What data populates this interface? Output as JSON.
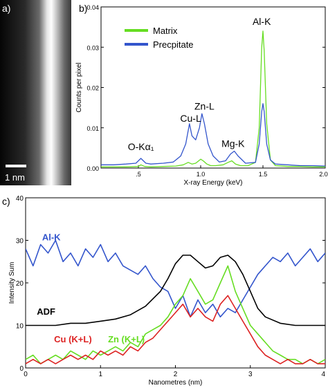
{
  "panels": {
    "a": {
      "label": "a)",
      "scale_bar_label": "1 nm"
    },
    "b": {
      "label": "b)"
    },
    "c": {
      "label": "c)"
    }
  },
  "chart_data": [
    {
      "panel": "b",
      "type": "line",
      "xlabel": "X-ray Energy (keV)",
      "ylabel": "Counts per pixel",
      "xlim": [
        0.2,
        2.0
      ],
      "ylim": [
        0,
        0.04
      ],
      "xticks": [
        {
          "value": 0.5,
          "label": ".5"
        },
        {
          "value": 1.0,
          "label": "1.0"
        },
        {
          "value": 1.5,
          "label": "1.5"
        },
        {
          "value": 2.0,
          "label": "2.00"
        }
      ],
      "yticks": [
        {
          "value": 0,
          "label": "0.00"
        },
        {
          "value": 0.01,
          "label": "0.01"
        },
        {
          "value": 0.02,
          "label": "0.02"
        },
        {
          "value": 0.03,
          "label": "0.03"
        },
        {
          "value": 0.04,
          "label": "0.04"
        }
      ],
      "legend_position": "top-left",
      "series": [
        {
          "name": "Matrix",
          "color": "#66dd22",
          "x": [
            0.2,
            0.3,
            0.4,
            0.5,
            0.52,
            0.55,
            0.6,
            0.7,
            0.8,
            0.86,
            0.9,
            0.93,
            0.96,
            1.0,
            1.02,
            1.05,
            1.08,
            1.12,
            1.18,
            1.22,
            1.25,
            1.28,
            1.32,
            1.38,
            1.44,
            1.47,
            1.49,
            1.5,
            1.51,
            1.53,
            1.56,
            1.6,
            1.7,
            1.8,
            1.9,
            2.0
          ],
          "y": [
            0.0003,
            0.0003,
            0.0003,
            0.0004,
            0.0008,
            0.0004,
            0.0003,
            0.0004,
            0.0005,
            0.0008,
            0.0014,
            0.001,
            0.0012,
            0.0022,
            0.0018,
            0.001,
            0.0006,
            0.0006,
            0.0008,
            0.0014,
            0.0018,
            0.001,
            0.0006,
            0.0006,
            0.0014,
            0.01,
            0.03,
            0.034,
            0.029,
            0.011,
            0.002,
            0.0006,
            0.0004,
            0.0004,
            0.0003,
            0.0003
          ]
        },
        {
          "name": "Precpitate",
          "color": "#3355cc",
          "x": [
            0.2,
            0.3,
            0.4,
            0.48,
            0.52,
            0.56,
            0.6,
            0.7,
            0.78,
            0.84,
            0.88,
            0.91,
            0.93,
            0.96,
            0.99,
            1.01,
            1.03,
            1.06,
            1.1,
            1.15,
            1.2,
            1.24,
            1.27,
            1.3,
            1.36,
            1.44,
            1.47,
            1.49,
            1.5,
            1.51,
            1.53,
            1.56,
            1.6,
            1.7,
            1.8,
            1.9,
            2.0
          ],
          "y": [
            0.0008,
            0.0008,
            0.001,
            0.0012,
            0.0024,
            0.0012,
            0.001,
            0.0012,
            0.0015,
            0.003,
            0.006,
            0.011,
            0.008,
            0.007,
            0.01,
            0.0135,
            0.011,
            0.006,
            0.003,
            0.0015,
            0.0018,
            0.0035,
            0.0042,
            0.003,
            0.0012,
            0.0014,
            0.006,
            0.014,
            0.016,
            0.014,
            0.006,
            0.002,
            0.001,
            0.0008,
            0.0006,
            0.0006,
            0.0005
          ]
        }
      ],
      "annotations": [
        {
          "text": "O-Kα₁",
          "x": 0.52,
          "y": 0.0045
        },
        {
          "text": "Cu-L",
          "x": 0.92,
          "y": 0.0115
        },
        {
          "text": "Zn-L",
          "x": 1.03,
          "y": 0.0145
        },
        {
          "text": "Mg-K",
          "x": 1.26,
          "y": 0.0052
        },
        {
          "text": "Al-K",
          "x": 1.49,
          "y": 0.0355
        }
      ]
    },
    {
      "panel": "c",
      "type": "line",
      "xlabel": "Nanometres (nm)",
      "ylabel": "Intensity Sum",
      "xlim": [
        0,
        4
      ],
      "ylim": [
        0,
        40
      ],
      "xticks": [
        0,
        1,
        2,
        3,
        4
      ],
      "yticks": [
        0,
        10,
        20,
        30,
        40
      ],
      "series": [
        {
          "name": "Al-K",
          "color": "#3355cc",
          "x": [
            0.0,
            0.1,
            0.2,
            0.3,
            0.4,
            0.5,
            0.6,
            0.7,
            0.8,
            0.9,
            1.0,
            1.1,
            1.2,
            1.3,
            1.4,
            1.5,
            1.6,
            1.7,
            1.8,
            1.9,
            2.0,
            2.1,
            2.2,
            2.3,
            2.4,
            2.5,
            2.6,
            2.7,
            2.8,
            2.9,
            3.0,
            3.1,
            3.2,
            3.3,
            3.4,
            3.5,
            3.6,
            3.7,
            3.8,
            3.9,
            4.0
          ],
          "y": [
            28,
            24,
            29,
            27,
            30,
            25,
            27,
            24,
            28,
            26,
            29,
            25,
            27,
            24,
            23,
            22,
            24,
            21,
            19,
            18,
            14,
            17,
            12,
            16,
            13,
            15,
            12,
            14,
            13,
            16,
            19,
            22,
            24,
            26,
            25,
            27,
            24,
            26,
            28,
            25,
            27
          ]
        },
        {
          "name": "ADF",
          "color": "#000000",
          "x": [
            0.0,
            0.2,
            0.4,
            0.6,
            0.8,
            1.0,
            1.2,
            1.4,
            1.6,
            1.8,
            1.9,
            2.0,
            2.1,
            2.2,
            2.3,
            2.4,
            2.5,
            2.6,
            2.7,
            2.8,
            2.9,
            3.0,
            3.1,
            3.2,
            3.4,
            3.6,
            3.8,
            4.0
          ],
          "y": [
            10,
            10,
            10,
            10.5,
            10.5,
            11,
            11.5,
            12.5,
            14.5,
            18,
            21,
            24.5,
            26.5,
            26.5,
            25,
            23.5,
            24,
            26,
            26.5,
            25,
            22,
            18,
            14,
            12,
            10.5,
            10,
            10,
            10
          ]
        },
        {
          "name": "Zn (K+L)",
          "color": "#66dd22",
          "x": [
            0.0,
            0.1,
            0.2,
            0.3,
            0.4,
            0.5,
            0.6,
            0.7,
            0.8,
            0.9,
            1.0,
            1.1,
            1.2,
            1.3,
            1.4,
            1.5,
            1.6,
            1.7,
            1.8,
            1.9,
            2.0,
            2.1,
            2.2,
            2.3,
            2.4,
            2.5,
            2.6,
            2.7,
            2.8,
            2.9,
            3.0,
            3.1,
            3.2,
            3.3,
            3.4,
            3.5,
            3.6,
            3.7,
            3.8,
            3.9,
            4.0
          ],
          "y": [
            2,
            3,
            1,
            2,
            3,
            2,
            4,
            3,
            2,
            4,
            3,
            4,
            5,
            4,
            6,
            5,
            8,
            9,
            10,
            12,
            15,
            17,
            21,
            18,
            15,
            16,
            20,
            24,
            18,
            14,
            10,
            8,
            6,
            4,
            3,
            2,
            2,
            1,
            2,
            1,
            2
          ]
        },
        {
          "name": "Cu (K+L)",
          "color": "#dd2222",
          "x": [
            0.0,
            0.1,
            0.2,
            0.3,
            0.4,
            0.5,
            0.6,
            0.7,
            0.8,
            0.9,
            1.0,
            1.1,
            1.2,
            1.3,
            1.4,
            1.5,
            1.6,
            1.7,
            1.8,
            1.9,
            2.0,
            2.1,
            2.2,
            2.3,
            2.4,
            2.5,
            2.6,
            2.7,
            2.8,
            2.9,
            3.0,
            3.1,
            3.2,
            3.3,
            3.4,
            3.5,
            3.6,
            3.7,
            3.8,
            3.9,
            4.0
          ],
          "y": [
            1,
            2,
            1,
            2,
            1,
            2,
            3,
            2,
            3,
            2,
            4,
            3,
            4,
            3,
            5,
            4,
            6,
            7,
            9,
            11,
            13,
            15,
            12,
            14,
            12,
            11,
            15,
            17,
            14,
            11,
            8,
            5,
            3,
            2,
            1,
            2,
            1,
            1,
            2,
            1,
            1
          ]
        }
      ],
      "annotations": [
        {
          "text": "Al-K",
          "x": 0.22,
          "y": 30
        },
        {
          "text": "ADF",
          "x": 0.15,
          "y": 12.5
        },
        {
          "text": "Cu (K+L)",
          "x": 0.38,
          "y": 6
        },
        {
          "text": "Zn (K+L)",
          "x": 1.1,
          "y": 6
        }
      ]
    }
  ]
}
